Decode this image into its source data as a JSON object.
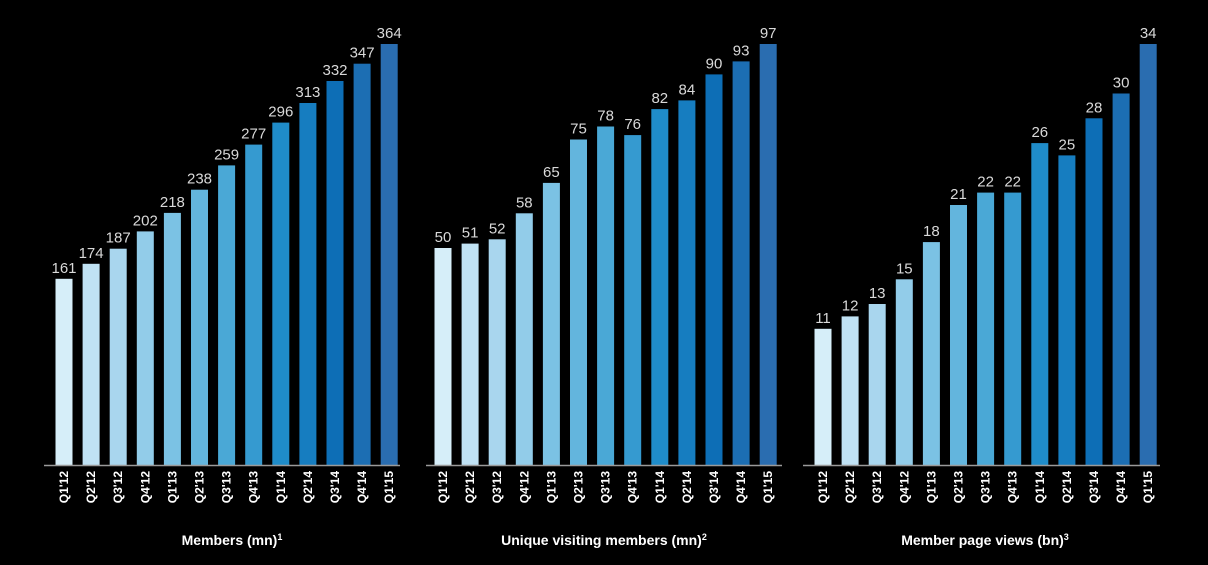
{
  "chart_data": [
    {
      "type": "bar",
      "title": "Members (mn)",
      "footnote": "1",
      "categories": [
        "Q1'12",
        "Q2'12",
        "Q3'12",
        "Q4'12",
        "Q1'13",
        "Q2'13",
        "Q3'13",
        "Q4'13",
        "Q1'14",
        "Q2'14",
        "Q3'14",
        "Q4'14",
        "Q1'15"
      ],
      "values": [
        161,
        174,
        187,
        202,
        218,
        238,
        259,
        277,
        296,
        313,
        332,
        347,
        364
      ],
      "ylim": [
        0,
        364
      ],
      "grid": false,
      "data_labels": true
    },
    {
      "type": "bar",
      "title": "Unique visiting members (mn)",
      "footnote": "2",
      "categories": [
        "Q1'12",
        "Q2'12",
        "Q3'12",
        "Q4'12",
        "Q1'13",
        "Q2'13",
        "Q3'13",
        "Q4'13",
        "Q1'14",
        "Q2'14",
        "Q3'14",
        "Q4'14",
        "Q1'15"
      ],
      "values": [
        50,
        51,
        52,
        58,
        65,
        75,
        78,
        76,
        82,
        84,
        90,
        93,
        97
      ],
      "ylim": [
        0,
        97
      ],
      "grid": false,
      "data_labels": true
    },
    {
      "type": "bar",
      "title": "Member page views (bn)",
      "footnote": "3",
      "categories": [
        "Q1'12",
        "Q2'12",
        "Q3'12",
        "Q4'12",
        "Q1'13",
        "Q2'13",
        "Q3'13",
        "Q4'13",
        "Q1'14",
        "Q2'14",
        "Q3'14",
        "Q4'14",
        "Q1'15"
      ],
      "values": [
        11,
        12,
        13,
        15,
        18,
        21,
        22,
        22,
        26,
        25,
        28,
        30,
        34
      ],
      "ylim": [
        0,
        34
      ],
      "grid": false,
      "data_labels": true
    }
  ],
  "colors": {
    "background": "#000000",
    "bar_gradient": [
      "#d6eef9",
      "#a9d6ee",
      "#7bc2e4",
      "#4aa8d6",
      "#1f8cc9",
      "#0d6eb6",
      "#2a6db0"
    ],
    "axis": "#9a9a9a",
    "value_label": "#d9d9d9",
    "text": "#ffffff"
  }
}
